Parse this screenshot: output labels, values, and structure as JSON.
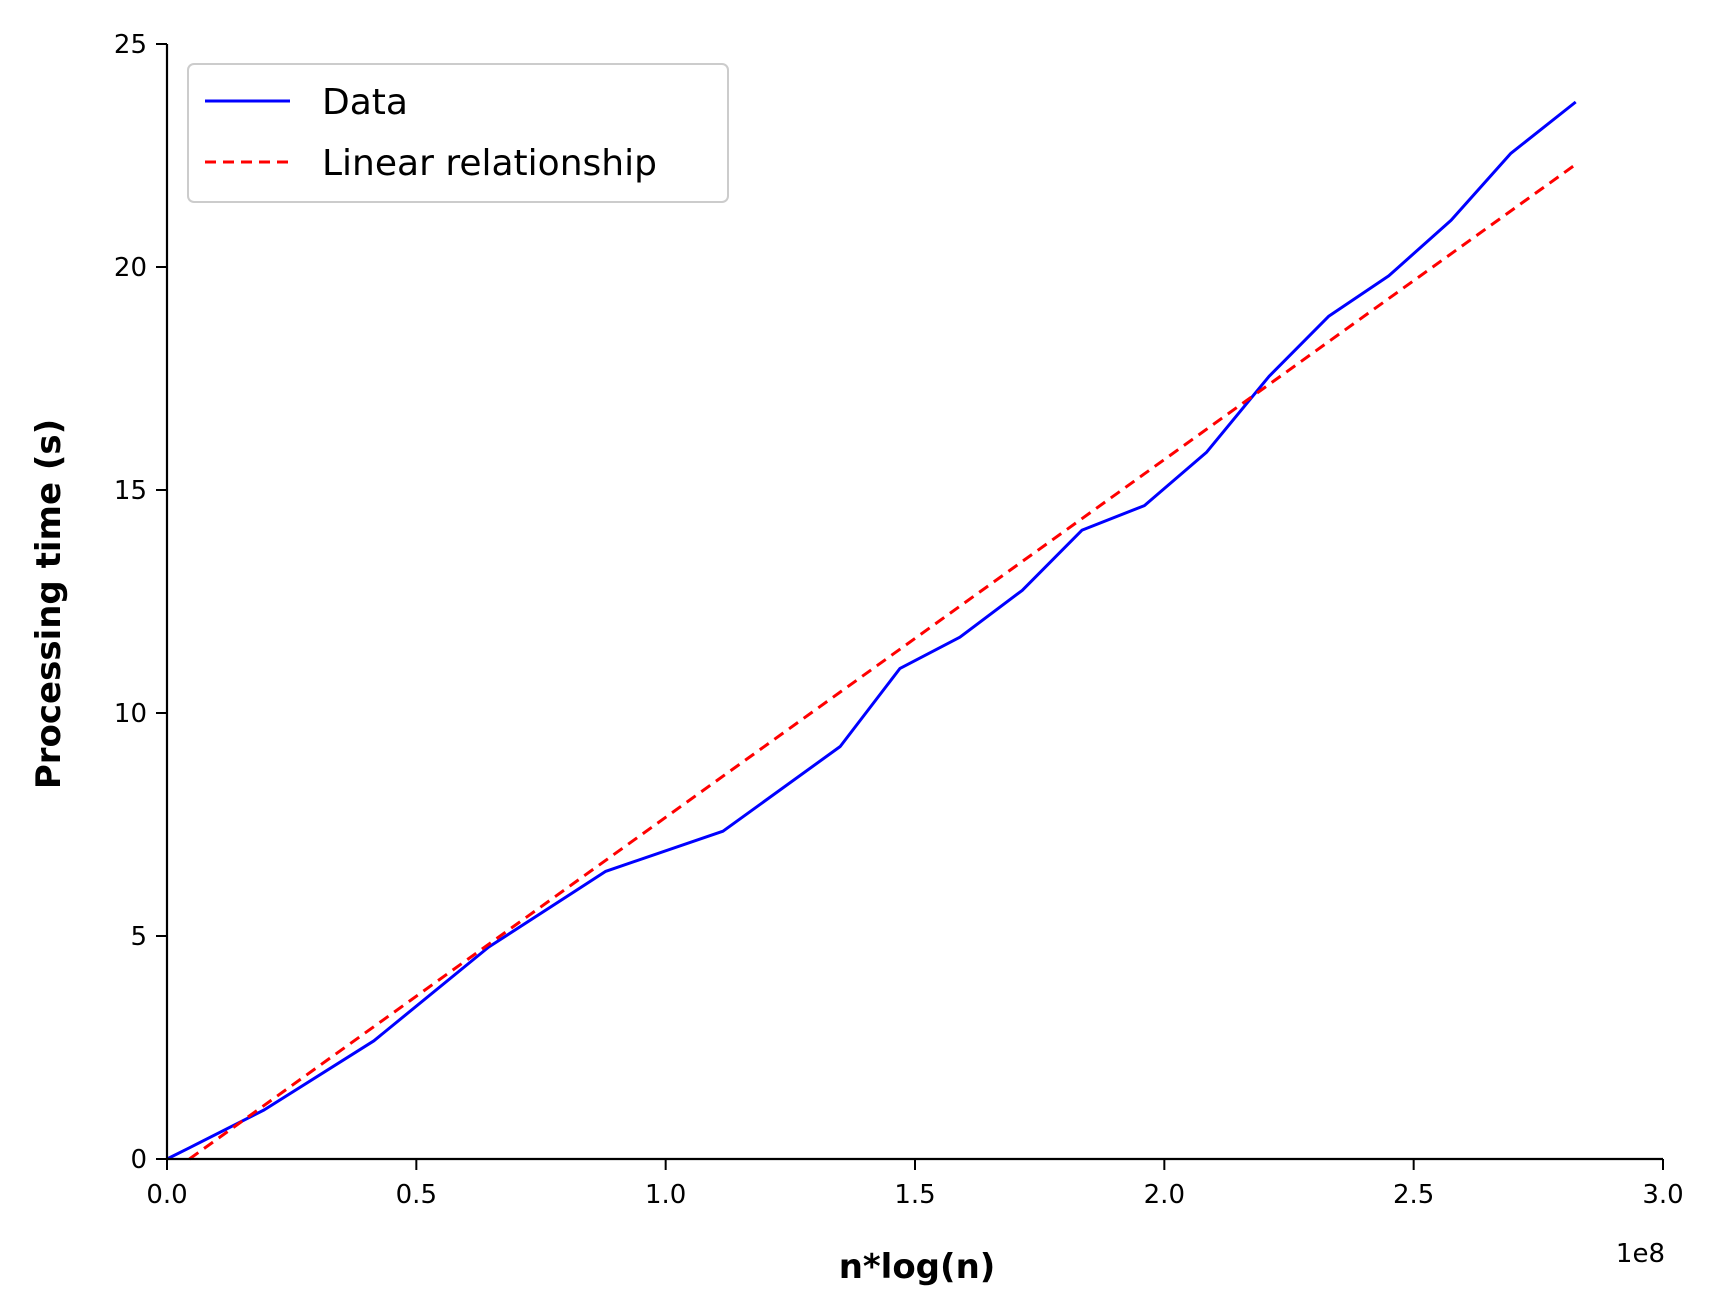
{
  "chart_data": {
    "type": "line",
    "title": "",
    "xlabel": "n*log(n)",
    "ylabel": "Processing time (s)",
    "x_offset_label": "1e8",
    "xlim": [
      0.0,
      3.0
    ],
    "ylim": [
      0,
      25
    ],
    "x_ticks": [
      "0.0",
      "0.5",
      "1.0",
      "1.5",
      "2.0",
      "2.5",
      "3.0"
    ],
    "y_ticks": [
      "0",
      "5",
      "10",
      "15",
      "20",
      "25"
    ],
    "grid": false,
    "legend_position": "upper-left",
    "series": [
      {
        "name": "Data",
        "style": "solid",
        "color": "#0000ff",
        "x": [
          0.0,
          0.045,
          0.195,
          0.415,
          0.645,
          0.88,
          1.115,
          1.35,
          1.47,
          1.59,
          1.715,
          1.835,
          1.96,
          2.085,
          2.21,
          2.33,
          2.45,
          2.575,
          2.695,
          2.825
        ],
        "y": [
          0,
          0.25,
          1.1,
          2.65,
          4.75,
          6.45,
          7.35,
          9.25,
          11.0,
          11.7,
          12.75,
          14.1,
          14.65,
          15.85,
          17.55,
          18.9,
          19.8,
          21.05,
          22.55,
          23.7
        ]
      },
      {
        "name": "Linear relationship",
        "style": "dashed",
        "color": "#ff0000",
        "x": [
          0.045,
          2.825
        ],
        "y": [
          0.0,
          22.3
        ]
      }
    ]
  }
}
